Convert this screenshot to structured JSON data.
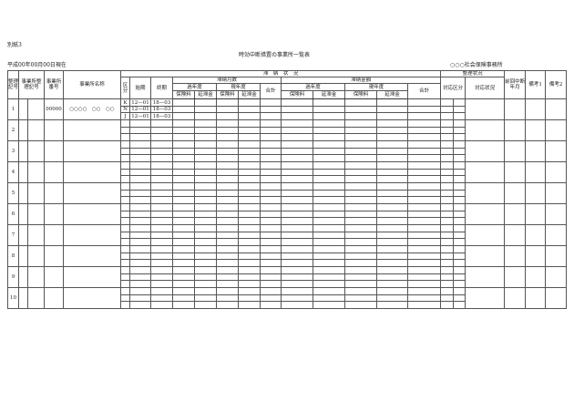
{
  "attachment_label": "別紙3",
  "title": "時効中断措置の事業所一覧表",
  "as_of_date": "平成00年00月00日現在",
  "office_name": "○○○社会保険事務所",
  "headers": {
    "seiri_kigou": "整理記号",
    "jigyosho_seiri_kigou": "事業所整理記号",
    "jigyosho_bangou": "事業所番号",
    "jigyosho_meisho": "事業所名称",
    "tainou_joukyou": "滞　納　状　況",
    "seiri_joukyou": "整理状況",
    "zenkai_chudan": "前回中断年月",
    "bikou1": "備考1",
    "bikou2": "備考2",
    "kubun": "区分",
    "shiki": "始期",
    "shuuki": "終期",
    "tainou_tsukisuu": "滞納月数",
    "tainou_kingaku": "滞納金額",
    "taiou_kubun": "対応区分",
    "taiou_joukyou": "対応状況",
    "kanendo": "過年度",
    "gennendo": "現年度",
    "goukei": "合計",
    "hokenryou": "保険料",
    "entaikin": "延滞金"
  },
  "records": [
    {
      "no": "1",
      "office_number": "00000",
      "office_name": "○○○○　○○　○○",
      "sub": [
        {
          "kubun": "K",
          "start": "12—01",
          "end": "18—03"
        },
        {
          "kubun": "N",
          "start": "12—01",
          "end": "18—03"
        },
        {
          "kubun": "J",
          "start": "12—01",
          "end": "18—03"
        }
      ]
    },
    {
      "no": "2"
    },
    {
      "no": "3"
    },
    {
      "no": "4"
    },
    {
      "no": "5"
    },
    {
      "no": "6"
    },
    {
      "no": "7"
    },
    {
      "no": "8"
    },
    {
      "no": "9"
    },
    {
      "no": "10"
    }
  ]
}
